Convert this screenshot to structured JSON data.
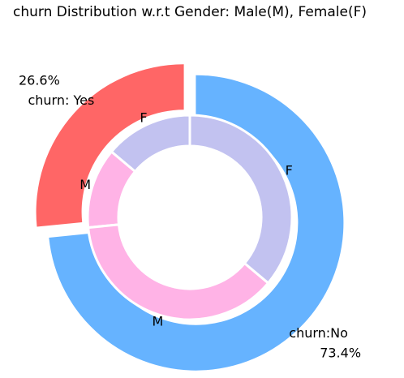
{
  "chart_data": {
    "type": "pie",
    "subtype": "nested-donut",
    "title": "churn Distribution w.r.t Gender: Male(M), Female(F)",
    "outer_ring": {
      "categories": [
        "churn: Yes",
        "churn:No"
      ],
      "values": [
        26.6,
        73.4
      ],
      "percent_labels": [
        "26.6%",
        "73.4%"
      ],
      "colors": [
        "#ff6666",
        "#66b3ff"
      ],
      "exploded": true
    },
    "inner_ring": {
      "categories": [
        "F",
        "M",
        "M",
        "F"
      ],
      "groups": [
        "churn: Yes",
        "churn: Yes",
        "churn:No",
        "churn:No"
      ],
      "values": [
        13.9,
        12.7,
        37.3,
        36.1
      ],
      "colors": [
        "#c2c2f0",
        "#ffb3e6",
        "#ffb3e6",
        "#c2c2f0"
      ]
    }
  }
}
